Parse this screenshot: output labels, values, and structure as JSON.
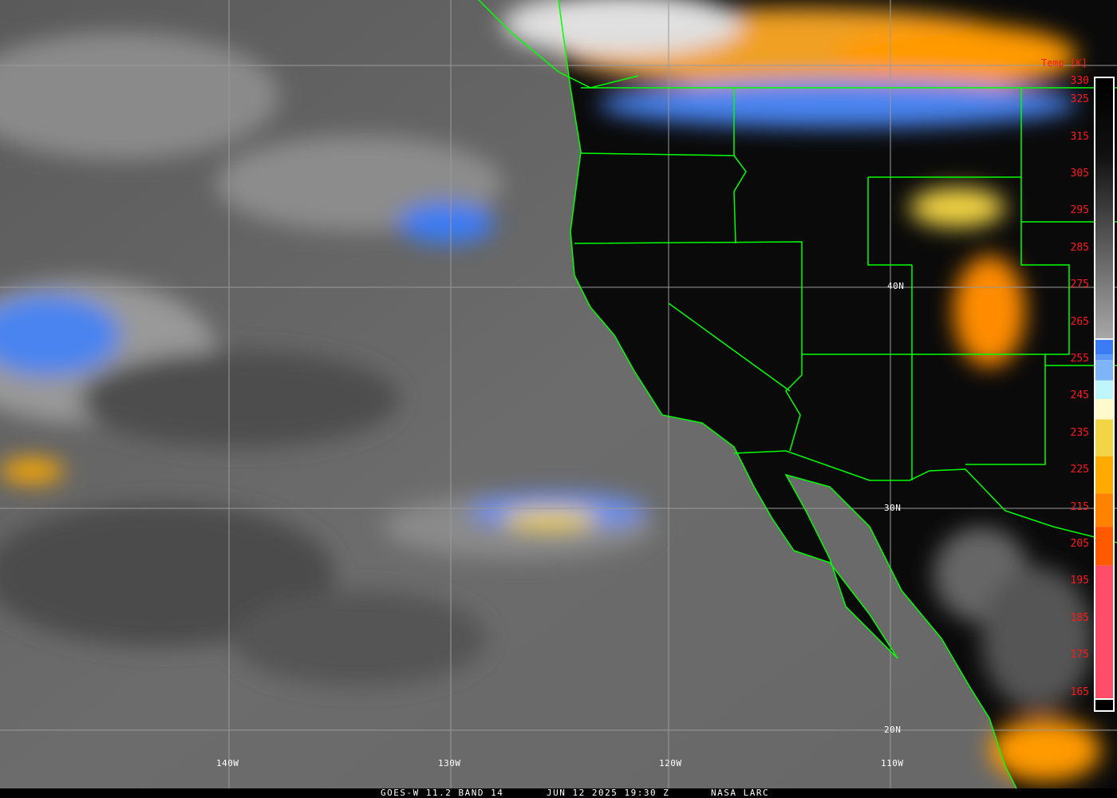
{
  "colorbar": {
    "title": "Temp [K]",
    "ticks": [
      "330",
      "325",
      "315",
      "305",
      "295",
      "285",
      "275",
      "265",
      "255",
      "245",
      "235",
      "225",
      "215",
      "205",
      "195",
      "185",
      "175",
      "165"
    ],
    "range_k": [
      165,
      330
    ],
    "segments": [
      {
        "from": 330,
        "to": 260,
        "color": "gradient black-to-gray"
      },
      {
        "from": 260,
        "to": 256,
        "color": "#3a7cf5"
      },
      {
        "from": 256,
        "to": 254.5,
        "color": "#5a96f5"
      },
      {
        "from": 254.5,
        "to": 249,
        "color": "#80b4f8"
      },
      {
        "from": 249,
        "to": 244,
        "color": "#bff6fb"
      },
      {
        "from": 244,
        "to": 238.5,
        "color": "#fffacc"
      },
      {
        "from": 238.5,
        "to": 228.5,
        "color": "#f2d445"
      },
      {
        "from": 228.5,
        "to": 218.5,
        "color": "#ffaa00"
      },
      {
        "from": 218.5,
        "to": 209.5,
        "color": "#ff8200"
      },
      {
        "from": 209.5,
        "to": 199,
        "color": "#ff5a00"
      },
      {
        "from": 199,
        "to": 163,
        "color": "#ff4d6a"
      }
    ]
  },
  "grid": {
    "latitudes": [
      "40N",
      "30N",
      "20N"
    ],
    "longitudes": [
      "140W",
      "130W",
      "120W",
      "110W"
    ]
  },
  "footer": {
    "satellite": "GOES-W 11.2 BAND 14",
    "datetime": "JUN 12 2025 19:30 Z",
    "credit": "NASA LARC"
  },
  "colors": {
    "borders": "#00ff00",
    "labels": "#ff1a1a",
    "grid": "#9a9a9a"
  }
}
